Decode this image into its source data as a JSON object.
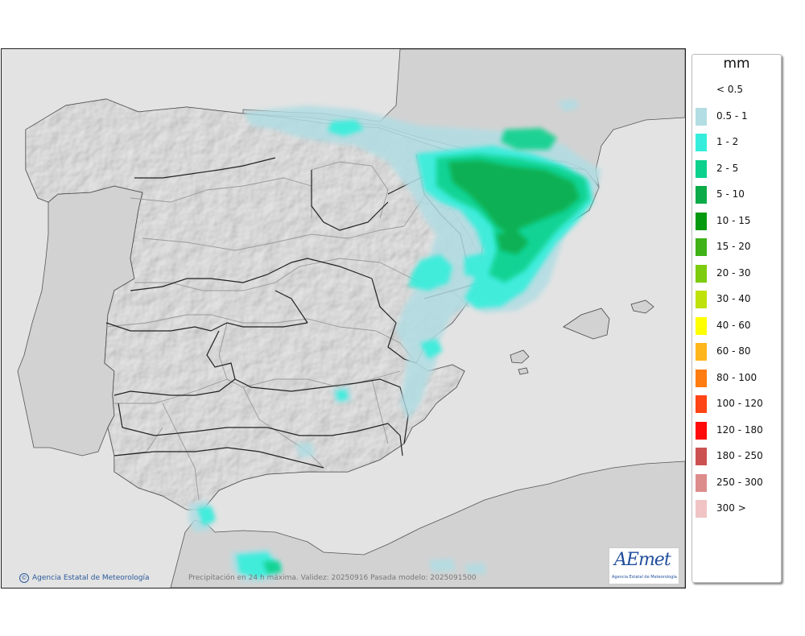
{
  "map": {
    "credit": "Agencia Estatal de Meteorología",
    "caption": "Precipitación en 24 h máxima. Validez: 20250916 Pasada modelo: 2025091500",
    "logo_text": "AEmet",
    "logo_subtext": "Agencia Estatal de Meteorología",
    "colors": {
      "sea": "#e3e3e3",
      "land": "#d2d2d2",
      "border": "#222222"
    }
  },
  "legend": {
    "title": "mm",
    "items": [
      {
        "label": "< 0.5",
        "color": "#ffffff"
      },
      {
        "label": "0.5 - 1",
        "color": "#b1dde3"
      },
      {
        "label": "1 - 2",
        "color": "#34eedb"
      },
      {
        "label": "2 - 5",
        "color": "#0bd18d"
      },
      {
        "label": "5 - 10",
        "color": "#0aab48"
      },
      {
        "label": "10 - 15",
        "color": "#059910"
      },
      {
        "label": "15 - 20",
        "color": "#3fb218"
      },
      {
        "label": "20 - 30",
        "color": "#7dcc0d"
      },
      {
        "label": "30 - 40",
        "color": "#bfe20a"
      },
      {
        "label": "40 - 60",
        "color": "#ffff00"
      },
      {
        "label": "60 - 80",
        "color": "#ffb51c"
      },
      {
        "label": "80 - 100",
        "color": "#ff7c11"
      },
      {
        "label": "100 - 120",
        "color": "#ff4515"
      },
      {
        "label": "120 - 180",
        "color": "#ff0a0a"
      },
      {
        "label": "180 - 250",
        "color": "#cc5252"
      },
      {
        "label": "250 - 300",
        "color": "#dd8c8c"
      },
      {
        "label": "300 >",
        "color": "#f0c4c4"
      }
    ]
  }
}
